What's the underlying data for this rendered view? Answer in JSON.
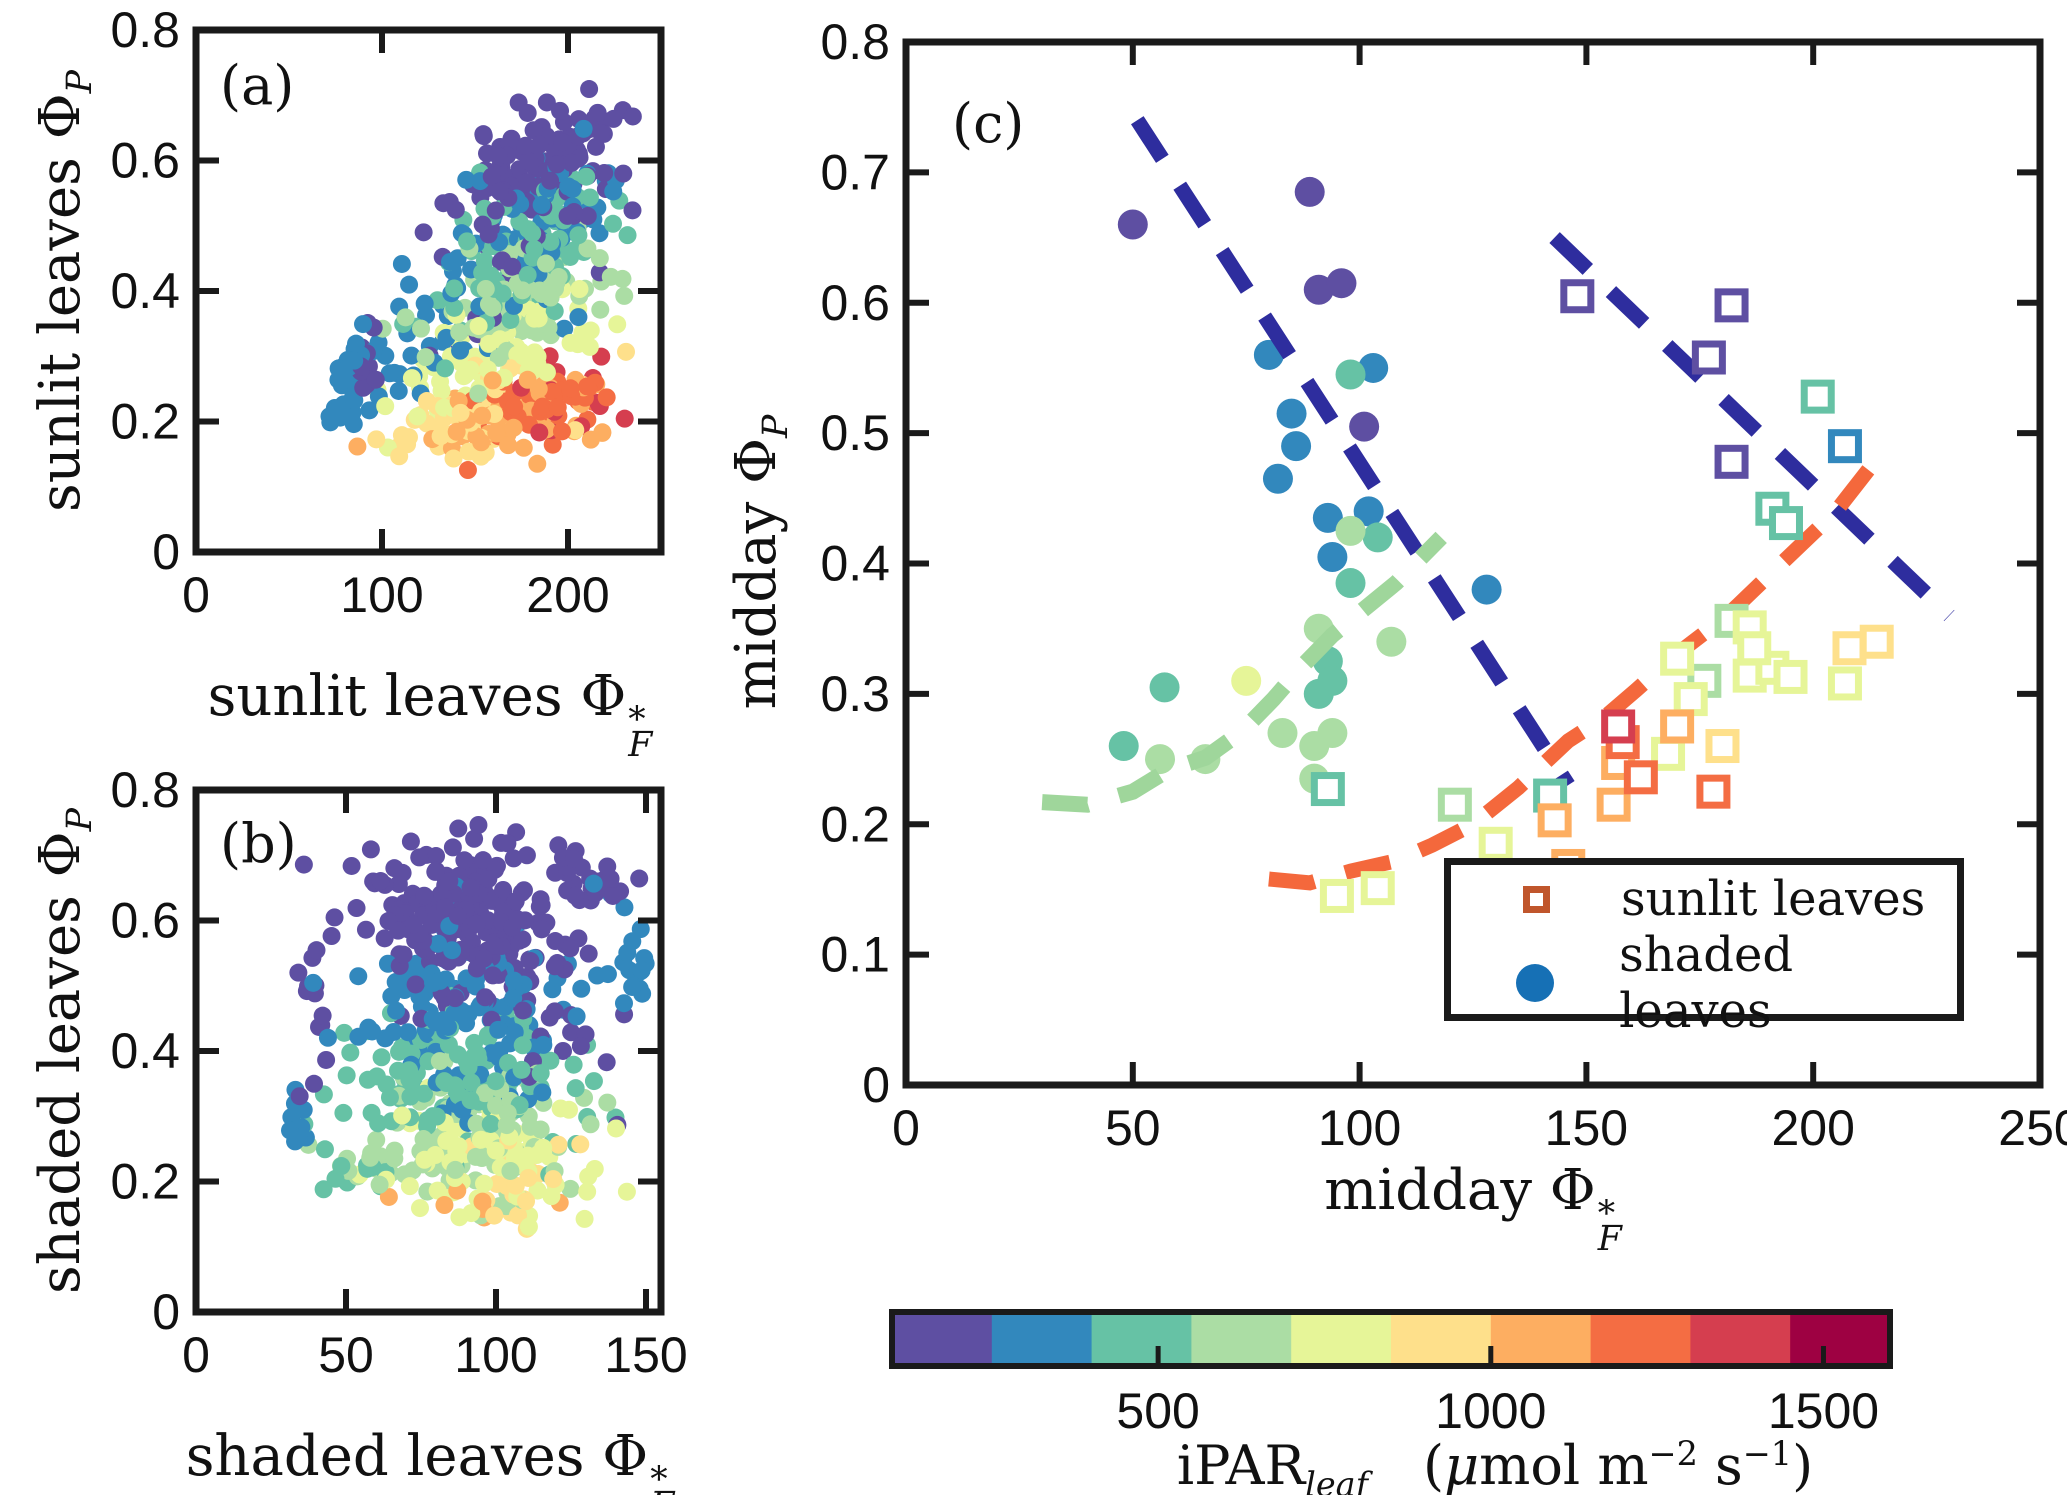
{
  "page": {
    "background": "#ffffff",
    "ink": "#1a1a1a"
  },
  "symbols": {
    "phi": "Φ",
    "star": "*",
    "sub_F": "F",
    "sub_P": "P"
  },
  "panel_a": {
    "letter": "(a)",
    "axis_prefix": "sunlit leaves"
  },
  "panel_b": {
    "letter": "(b)",
    "axis_prefix": "shaded leaves"
  },
  "panel_c": {
    "letter": "(c)",
    "axis_prefix": "midday"
  },
  "legend": {
    "items": [
      {
        "label": "sunlit leaves",
        "marker": "open-square",
        "color": "#c0562c"
      },
      {
        "label": "shaded leaves",
        "marker": "filled-circle",
        "color": "#1670b5"
      }
    ]
  },
  "colorbar": {
    "label_main": "iPAR",
    "label_sub": "leaf",
    "units_pre": "(",
    "units_mu": "μ",
    "units_mol": "mol m",
    "units_sup1": "−2",
    "units_s": " s",
    "units_sup2": "−1",
    "units_post": ")",
    "ticks": [
      500,
      1000,
      1500
    ],
    "range": [
      100,
      1600
    ],
    "colors": [
      "#5e4fa2",
      "#3288bd",
      "#66c2a5",
      "#abdda4",
      "#e6f598",
      "#fee08b",
      "#fdae61",
      "#f46d43",
      "#d53e4f",
      "#9e0142"
    ]
  },
  "chart_data": [
    {
      "id": "a",
      "type": "scatter",
      "title": "(a)",
      "xlabel": "sunlit leaves Φ*_F",
      "ylabel": "sunlit leaves Φ_P",
      "xlim": [
        0,
        250
      ],
      "ylim": [
        0,
        0.8
      ],
      "xticks": [
        0,
        100,
        200
      ],
      "yticks": [
        0,
        0.2,
        0.4,
        0.6,
        0.8
      ],
      "grid": false,
      "color_by": "iPAR_leaf via colorbar bins",
      "marker": "filled-circle",
      "marker_radius_px": 9,
      "point_cloud": {
        "seed": 11,
        "xclip": [
          70,
          238
        ],
        "yclip": [
          0.105,
          0.71
        ],
        "clusters": [
          [
            0,
            130,
            185,
            0.59,
            22,
            0.05,
            0.3
          ],
          [
            0,
            12,
            91,
            0.295,
            3,
            0.03,
            0
          ],
          [
            0,
            15,
            150,
            0.4,
            25,
            0.06,
            0.5
          ],
          [
            1,
            25,
            80,
            0.25,
            4,
            0.035,
            0.3
          ],
          [
            1,
            60,
            140,
            0.38,
            30,
            0.07,
            0.6
          ],
          [
            1,
            45,
            190,
            0.53,
            20,
            0.04,
            0.3
          ],
          [
            2,
            85,
            175,
            0.46,
            25,
            0.055,
            0.4
          ],
          [
            3,
            75,
            170,
            0.38,
            28,
            0.05,
            0.4
          ],
          [
            4,
            75,
            160,
            0.3,
            28,
            0.05,
            0.5
          ],
          [
            5,
            60,
            150,
            0.21,
            26,
            0.04,
            0.5
          ],
          [
            6,
            55,
            170,
            0.2,
            24,
            0.035,
            0.4
          ],
          [
            7,
            45,
            185,
            0.225,
            18,
            0.03,
            0.3
          ],
          [
            8,
            14,
            193,
            0.24,
            16,
            0.035,
            0.2
          ]
        ]
      }
    },
    {
      "id": "b",
      "type": "scatter",
      "title": "(b)",
      "xlabel": "shaded leaves Φ*_F",
      "ylabel": "shaded leaves Φ_P",
      "xlim": [
        0,
        155
      ],
      "ylim": [
        0,
        0.8
      ],
      "xticks": [
        0,
        50,
        100,
        150
      ],
      "yticks": [
        0,
        0.2,
        0.4,
        0.6,
        0.8
      ],
      "grid": false,
      "color_by": "iPAR_leaf via colorbar bins",
      "marker": "filled-circle",
      "marker_radius_px": 9,
      "point_cloud": {
        "seed": 23,
        "xclip": [
          30,
          150
        ],
        "yclip": [
          0.125,
          0.75
        ],
        "clusters": [
          [
            0,
            210,
            90,
            0.6,
            17,
            0.065,
            -0.1
          ],
          [
            0,
            15,
            37,
            0.46,
            2.5,
            0.08,
            0
          ],
          [
            0,
            22,
            132,
            0.66,
            9,
            0.035,
            -0.5
          ],
          [
            0,
            18,
            120,
            0.46,
            10,
            0.06,
            -0.3
          ],
          [
            1,
            120,
            85,
            0.47,
            18,
            0.07,
            0
          ],
          [
            1,
            12,
            34,
            0.27,
            2,
            0.05,
            0
          ],
          [
            1,
            12,
            140,
            0.55,
            6,
            0.06,
            0
          ],
          [
            1,
            8,
            148,
            0.53,
            3,
            0.03,
            0
          ],
          [
            2,
            115,
            88,
            0.36,
            19,
            0.06,
            0
          ],
          [
            2,
            10,
            50,
            0.22,
            8,
            0.02,
            0
          ],
          [
            3,
            90,
            92,
            0.27,
            19,
            0.05,
            0
          ],
          [
            3,
            8,
            62,
            0.22,
            8,
            0.015,
            0
          ],
          [
            4,
            85,
            95,
            0.235,
            17,
            0.04,
            0
          ],
          [
            5,
            22,
            103,
            0.2,
            16,
            0.035,
            0
          ],
          [
            6,
            7,
            103,
            0.165,
            14,
            0.02,
            0
          ]
        ]
      }
    },
    {
      "id": "c",
      "type": "scatter",
      "title": "(c)",
      "xlabel": "midday Φ*_F",
      "ylabel": "midday Φ_P",
      "xlim": [
        0,
        250
      ],
      "ylim": [
        0,
        0.8
      ],
      "xticks": [
        0,
        50,
        100,
        150,
        200,
        250
      ],
      "yticks": [
        0,
        0.1,
        0.2,
        0.3,
        0.4,
        0.5,
        0.6,
        0.7,
        0.8
      ],
      "grid": false,
      "legend_position": "lower-right",
      "series": [
        {
          "name": "shaded leaves",
          "marker": "filled-circle",
          "marker_radius_px": 15,
          "points_xyc": [
            [
              50,
              0.66,
              0
            ],
            [
              89,
              0.685,
              0
            ],
            [
              91,
              0.61,
              0
            ],
            [
              96,
              0.615,
              0
            ],
            [
              101,
              0.505,
              0
            ],
            [
              80,
              0.56,
              1
            ],
            [
              103,
              0.55,
              1
            ],
            [
              85,
              0.515,
              1
            ],
            [
              86,
              0.49,
              1
            ],
            [
              82,
              0.465,
              1
            ],
            [
              93,
              0.435,
              1
            ],
            [
              102,
              0.44,
              1
            ],
            [
              94,
              0.405,
              1
            ],
            [
              128,
              0.38,
              1
            ],
            [
              98,
              0.545,
              2
            ],
            [
              104,
              0.42,
              2
            ],
            [
              98,
              0.385,
              2
            ],
            [
              57,
              0.305,
              2
            ],
            [
              93,
              0.325,
              2
            ],
            [
              94,
              0.31,
              2
            ],
            [
              91,
              0.3,
              2
            ],
            [
              48,
              0.26,
              2
            ],
            [
              91,
              0.35,
              3
            ],
            [
              107,
              0.34,
              3
            ],
            [
              98,
              0.425,
              3
            ],
            [
              83,
              0.27,
              3
            ],
            [
              94,
              0.27,
              3
            ],
            [
              90,
              0.26,
              3
            ],
            [
              56,
              0.25,
              3
            ],
            [
              66,
              0.25,
              3
            ],
            [
              90,
              0.235,
              3
            ],
            [
              75,
              0.31,
              4
            ]
          ]
        },
        {
          "name": "sunlit leaves",
          "marker": "open-square",
          "marker_size_px": 27,
          "points_xyc": [
            [
              148,
              0.605,
              0
            ],
            [
              182,
              0.598,
              0
            ],
            [
              177,
              0.558,
              0
            ],
            [
              182,
              0.478,
              0
            ],
            [
              207,
              0.49,
              1
            ],
            [
              201,
              0.528,
              2
            ],
            [
              191,
              0.442,
              2
            ],
            [
              194,
              0.431,
              2
            ],
            [
              93,
              0.227,
              2
            ],
            [
              142,
              0.222,
              2
            ],
            [
              121,
              0.215,
              3
            ],
            [
              176,
              0.31,
              3
            ],
            [
              182,
              0.356,
              3
            ],
            [
              95,
              0.145,
              4
            ],
            [
              104,
              0.151,
              4
            ],
            [
              130,
              0.185,
              4
            ],
            [
              168,
              0.254,
              4
            ],
            [
              170,
              0.327,
              4
            ],
            [
              173,
              0.296,
              4
            ],
            [
              186,
              0.351,
              4
            ],
            [
              186,
              0.314,
              4
            ],
            [
              191,
              0.32,
              4
            ],
            [
              195,
              0.313,
              4
            ],
            [
              187,
              0.335,
              4
            ],
            [
              207,
              0.308,
              4
            ],
            [
              180,
              0.26,
              5
            ],
            [
              208,
              0.335,
              5
            ],
            [
              214,
              0.34,
              5
            ],
            [
              143,
              0.203,
              6
            ],
            [
              146,
              0.168,
              6
            ],
            [
              156,
              0.215,
              6
            ],
            [
              157,
              0.247,
              6
            ],
            [
              170,
              0.275,
              6
            ],
            [
              158,
              0.263,
              7
            ],
            [
              162,
              0.236,
              7
            ],
            [
              178,
              0.225,
              7
            ],
            [
              157,
              0.275,
              8
            ]
          ]
        }
      ],
      "trend_lines": [
        {
          "name": "shaded leaves high-light fit",
          "style": "dashed",
          "color": "#2e2d9e",
          "width": 15,
          "points": [
            [
              51,
              0.74
            ],
            [
              146,
              0.23
            ]
          ]
        },
        {
          "name": "sunlit leaves high-light fit",
          "style": "dashed",
          "color": "#2e2d9e",
          "width": 15,
          "points": [
            [
              143,
              0.65
            ],
            [
              230,
              0.36
            ]
          ]
        },
        {
          "name": "shaded leaves low-light fit",
          "style": "dashed",
          "color": "#9fd69b",
          "width": 16,
          "points": [
            [
              30,
              0.217
            ],
            [
              40,
              0.215
            ],
            [
              50,
              0.225
            ],
            [
              58,
              0.242
            ],
            [
              66,
              0.251
            ],
            [
              74,
              0.271
            ],
            [
              81,
              0.296
            ],
            [
              87,
              0.32
            ],
            [
              94,
              0.345
            ],
            [
              101,
              0.365
            ],
            [
              108,
              0.385
            ],
            [
              118,
              0.42
            ]
          ]
        },
        {
          "name": "sunlit leaves low-light fit",
          "style": "dashed",
          "color": "#f4683c",
          "width": 15,
          "points": [
            [
              80,
              0.158
            ],
            [
              89,
              0.155
            ],
            [
              98,
              0.164
            ],
            [
              108,
              0.172
            ],
            [
              116,
              0.184
            ],
            [
              125,
              0.2
            ],
            [
              135,
              0.228
            ],
            [
              146,
              0.264
            ],
            [
              154,
              0.282
            ],
            [
              161,
              0.303
            ],
            [
              169,
              0.328
            ],
            [
              181,
              0.36
            ],
            [
              193,
              0.4
            ],
            [
              205,
              0.44
            ],
            [
              214,
              0.48
            ]
          ]
        }
      ]
    }
  ]
}
